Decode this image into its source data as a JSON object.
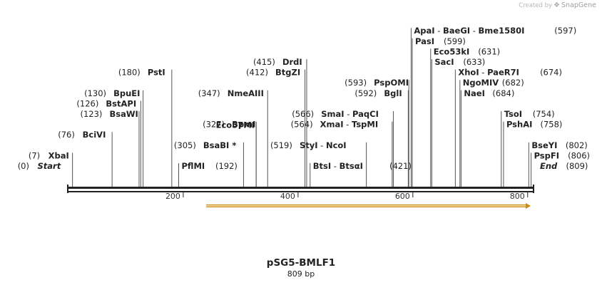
{
  "watermark": {
    "prefix": "Created by",
    "brand": "SnapGene",
    "icon": "snapgene-logo-icon"
  },
  "sequence": {
    "name": "pSG5-BMLF1",
    "length_label": "809 bp",
    "length": 809
  },
  "colors": {
    "backbone": "#222222",
    "feature_fill": "#f3d497",
    "feature_stroke": "#c98a10",
    "cut_line": "#555555"
  },
  "ruler": {
    "ticks": [
      {
        "value": 200,
        "label": "200"
      },
      {
        "value": 400,
        "label": "400"
      },
      {
        "value": 600,
        "label": "600"
      },
      {
        "value": 800,
        "label": "800"
      }
    ]
  },
  "feature": {
    "start": 240,
    "end": 809,
    "direction": "forward"
  },
  "special_sites": [
    {
      "name": "Start",
      "pos": 0,
      "pos_label": "(0)",
      "side": "left",
      "row": 0
    },
    {
      "name": "End",
      "pos": 809,
      "pos_label": "(809)",
      "side": "right",
      "row": 0
    }
  ],
  "site_groups": [
    {
      "side": "left",
      "row": 1,
      "pos_label": "(7)",
      "enzymes": [
        {
          "name": "XbaI",
          "pos": 7
        }
      ]
    },
    {
      "side": "left",
      "row": 3,
      "pos_label": "(76)",
      "enzymes": [
        {
          "name": "BciVI",
          "pos": 76
        }
      ]
    },
    {
      "side": "left",
      "row": 5,
      "pos_label": "(123)",
      "enzymes": [
        {
          "name": "BsaWI",
          "pos": 123
        }
      ]
    },
    {
      "side": "left",
      "row": 6,
      "pos_label": "(126)",
      "enzymes": [
        {
          "name": "BstAPI",
          "pos": 126
        }
      ]
    },
    {
      "side": "left",
      "row": 7,
      "pos_label": "(130)",
      "enzymes": [
        {
          "name": "BpuEI",
          "pos": 130
        }
      ]
    },
    {
      "side": "left",
      "row": 9,
      "pos_label": "(180)",
      "enzymes": [
        {
          "name": "PstI",
          "pos": 180
        }
      ]
    },
    {
      "side": "right",
      "row": 0,
      "pos_label": "(192)",
      "enzymes": [
        {
          "name": "PflMI",
          "pos": 192
        }
      ]
    },
    {
      "side": "left",
      "row": 2,
      "pos_label": "(305)",
      "enzymes": [
        {
          "name": "BsaBI *",
          "pos": 305
        }
      ]
    },
    {
      "side": "left",
      "row": 4,
      "pos_label": "(327)",
      "enzymes": [
        {
          "name": "BpmI",
          "pos": 327
        }
      ]
    },
    {
      "side": "left",
      "row": 3.95,
      "pos_label": "",
      "enzymes": [
        {
          "name": "Eco57MI",
          "pos": 327
        }
      ]
    },
    {
      "side": "left",
      "row": 7,
      "pos_label": "(347)",
      "enzymes": [
        {
          "name": "NmeAIII",
          "pos": 347
        }
      ]
    },
    {
      "side": "left",
      "row": 9,
      "pos_label": "(412)",
      "enzymes": [
        {
          "name": "BtgZI",
          "pos": 412
        }
      ]
    },
    {
      "side": "left",
      "row": 10,
      "pos_label": "(415)",
      "enzymes": [
        {
          "name": "DrdI",
          "pos": 415
        }
      ]
    },
    {
      "side": "right",
      "row": 0,
      "pos_label": "(421)",
      "enzymes": [
        {
          "name": "BtsI",
          "pos": 421
        },
        {
          "name": "BtsαI",
          "pos": 421
        }
      ]
    },
    {
      "side": "left",
      "row": 2,
      "pos_label": "(519)",
      "enzymes": [
        {
          "name": "StyI",
          "pos": 519
        },
        {
          "name": "NcoI",
          "pos": 519
        }
      ]
    },
    {
      "side": "left",
      "row": 4,
      "pos_label": "(564)",
      "enzymes": [
        {
          "name": "XmaI",
          "pos": 564
        },
        {
          "name": "TspMI",
          "pos": 564
        }
      ]
    },
    {
      "side": "left",
      "row": 5,
      "pos_label": "(566)",
      "enzymes": [
        {
          "name": "SmaI",
          "pos": 566
        },
        {
          "name": "PaqCI",
          "pos": 566
        }
      ]
    },
    {
      "side": "left",
      "row": 7,
      "pos_label": "(592)",
      "enzymes": [
        {
          "name": "BglI",
          "pos": 592
        }
      ]
    },
    {
      "side": "left",
      "row": 8,
      "pos_label": "(593)",
      "enzymes": [
        {
          "name": "PspOMI",
          "pos": 593
        }
      ]
    },
    {
      "side": "right",
      "row": 13,
      "pos_label": "(597)",
      "enzymes": [
        {
          "name": "ApaI",
          "pos": 597
        },
        {
          "name": "BaeGI",
          "pos": 597
        },
        {
          "name": "Bme1580I",
          "pos": 597
        }
      ]
    },
    {
      "side": "right",
      "row": 12,
      "pos_label": "(599)",
      "enzymes": [
        {
          "name": "PasI",
          "pos": 599
        }
      ]
    },
    {
      "side": "right",
      "row": 11,
      "pos_label": "(631)",
      "enzymes": [
        {
          "name": "Eco53kI",
          "pos": 631
        }
      ]
    },
    {
      "side": "right",
      "row": 10,
      "pos_label": "(633)",
      "enzymes": [
        {
          "name": "SacI",
          "pos": 633
        }
      ]
    },
    {
      "side": "right",
      "row": 9,
      "pos_label": "(674)",
      "enzymes": [
        {
          "name": "XhoI",
          "pos": 674
        },
        {
          "name": "PaeR7I",
          "pos": 674
        }
      ]
    },
    {
      "side": "right",
      "row": 8,
      "pos_label": "(682)",
      "enzymes": [
        {
          "name": "NgoMIV",
          "pos": 682
        }
      ]
    },
    {
      "side": "right",
      "row": 7,
      "pos_label": "(684)",
      "enzymes": [
        {
          "name": "NaeI",
          "pos": 684
        }
      ]
    },
    {
      "side": "right",
      "row": 5,
      "pos_label": "(754)",
      "enzymes": [
        {
          "name": "TsoI",
          "pos": 754
        }
      ]
    },
    {
      "side": "right",
      "row": 4,
      "pos_label": "(758)",
      "enzymes": [
        {
          "name": "PshAI",
          "pos": 758
        }
      ]
    },
    {
      "side": "right",
      "row": 2,
      "pos_label": "(802)",
      "enzymes": [
        {
          "name": "BseYI",
          "pos": 802
        }
      ]
    },
    {
      "side": "right",
      "row": 1,
      "pos_label": "(806)",
      "enzymes": [
        {
          "name": "PspFI",
          "pos": 806
        }
      ]
    }
  ]
}
